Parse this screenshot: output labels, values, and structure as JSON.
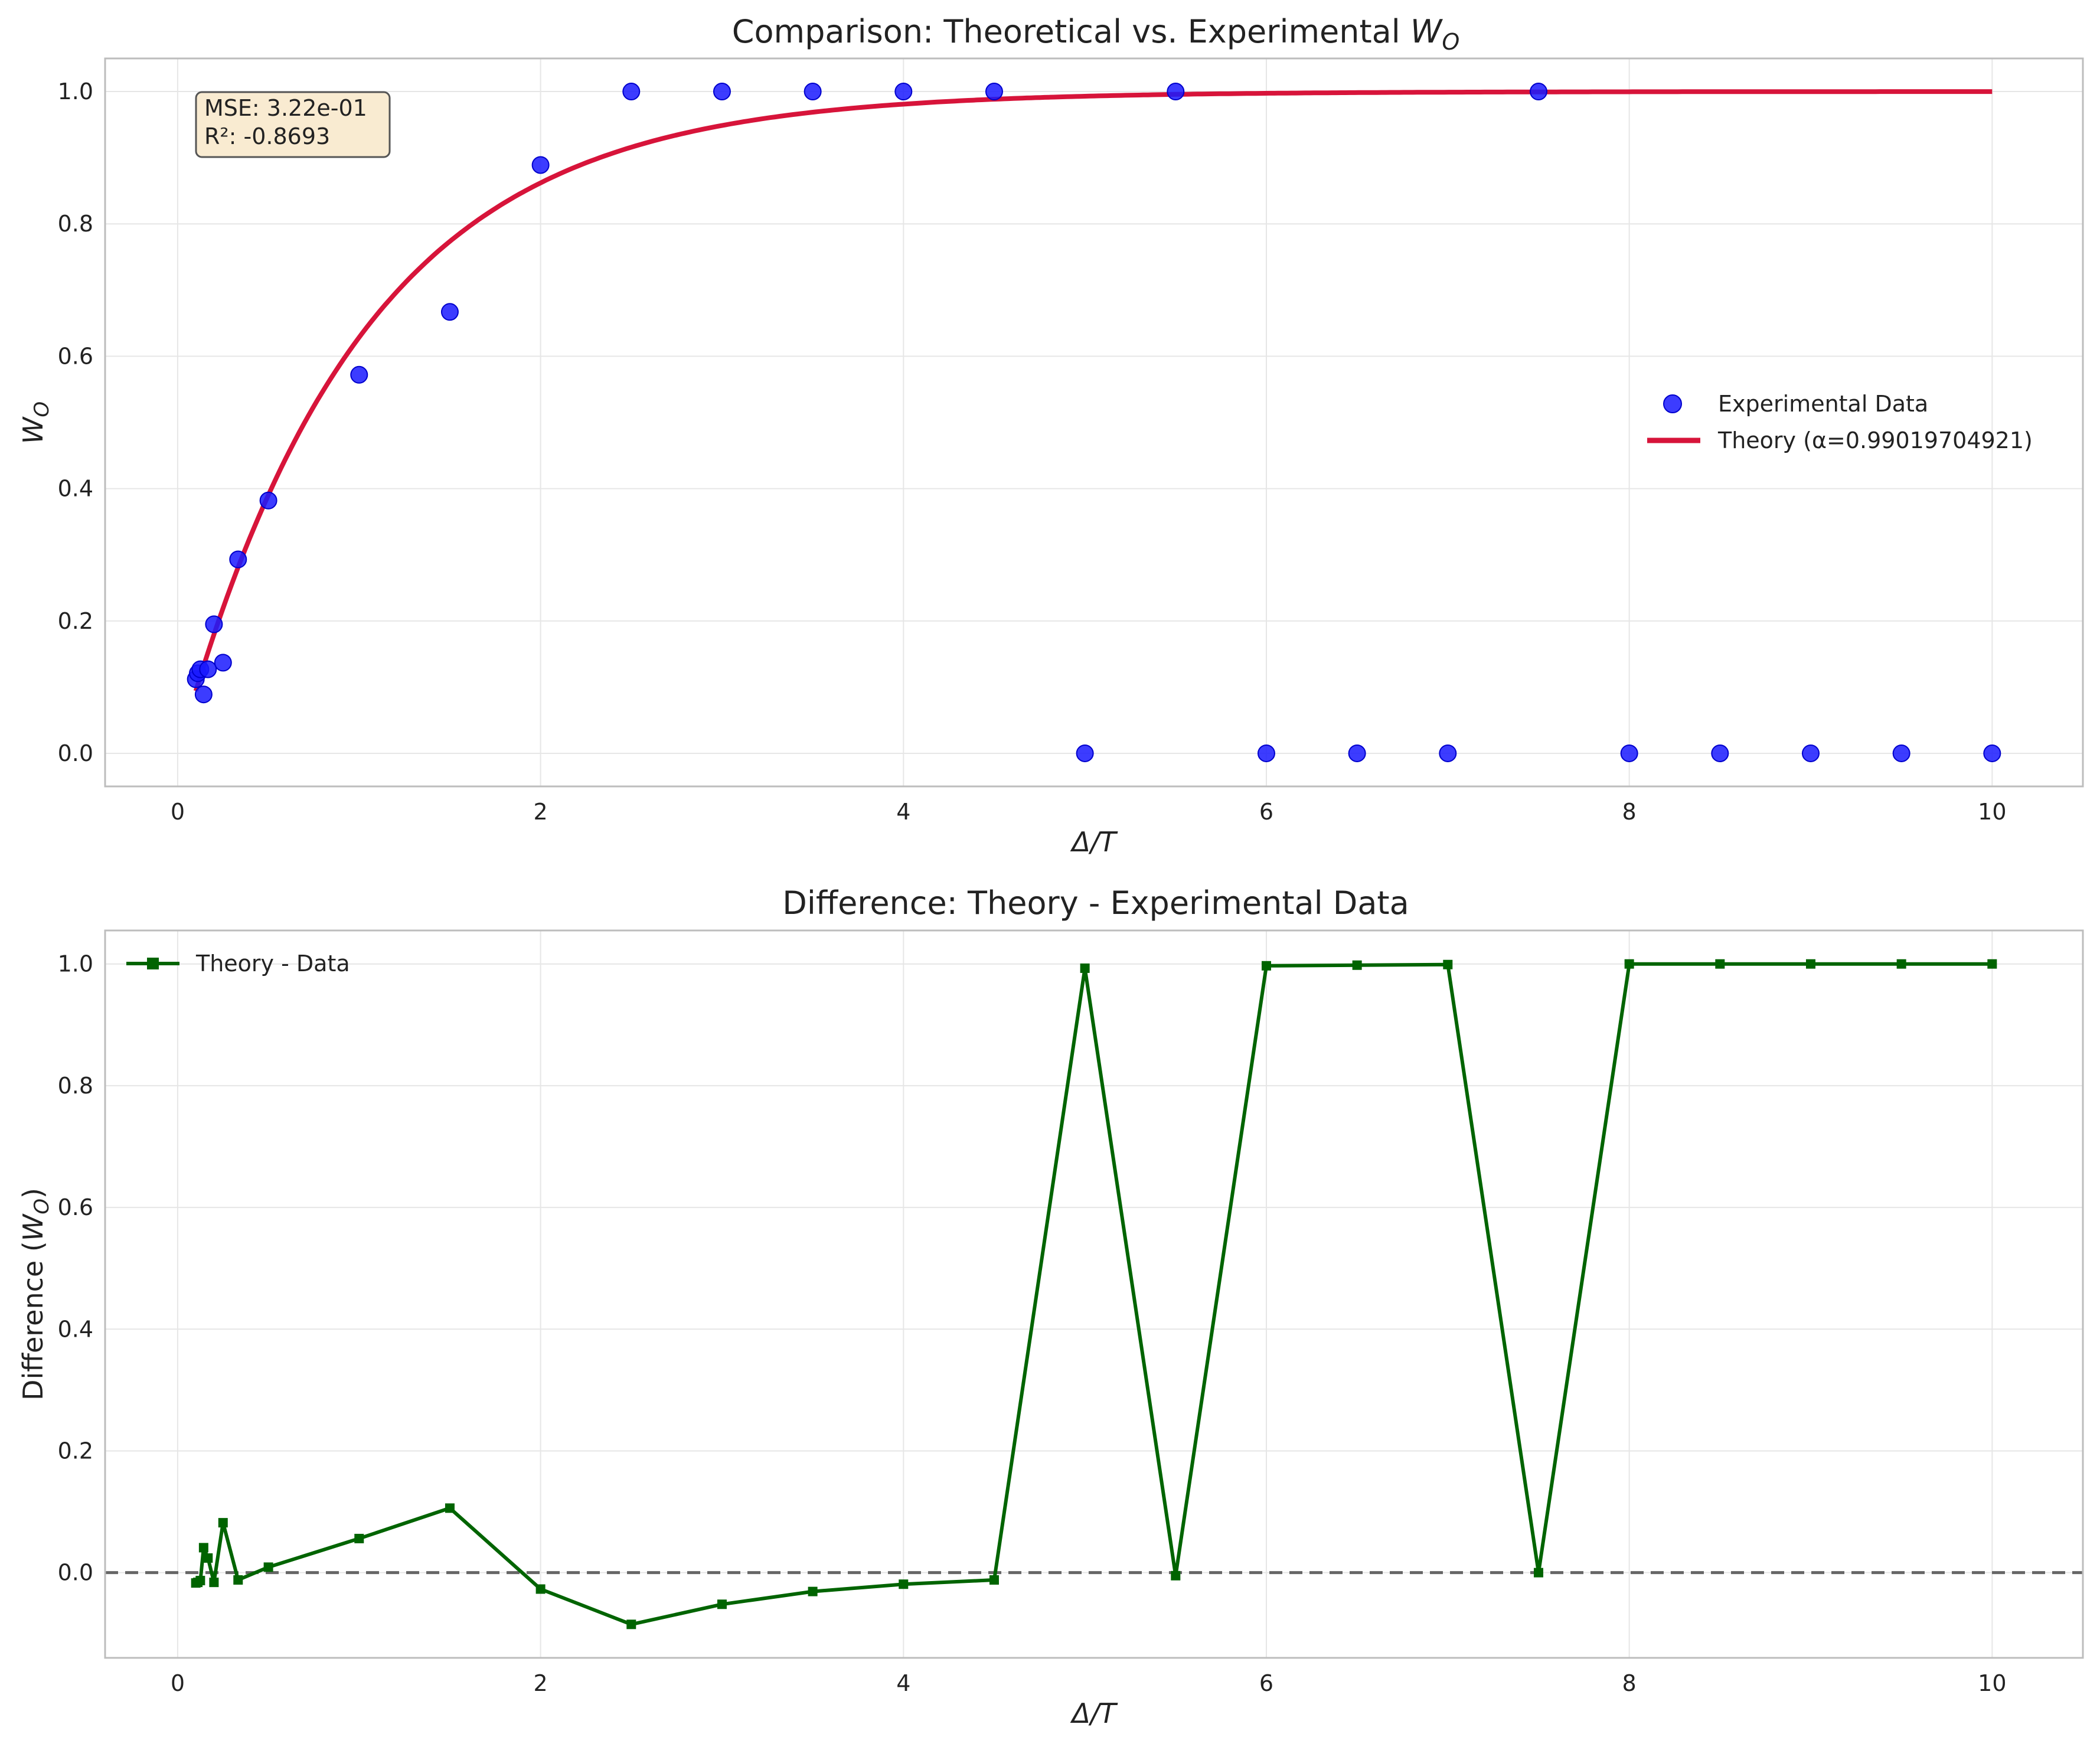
{
  "chart_data": [
    {
      "type": "scatter",
      "title": "Comparison: Theoretical vs. Experimental W_O",
      "title_prefix": "Comparison: Theoretical vs. Experimental ",
      "title_symbol": "W",
      "title_subscript": "O",
      "xlabel": "Δ/T",
      "ylabel_symbol": "W",
      "ylabel_subscript": "O",
      "xlim": [
        -0.4,
        10.5
      ],
      "ylim": [
        -0.05,
        1.05
      ],
      "xticks": [
        0,
        2,
        4,
        6,
        8,
        10
      ],
      "yticks": [
        0.0,
        0.2,
        0.4,
        0.6,
        0.8,
        1.0
      ],
      "grid": true,
      "annotation": [
        "MSE: 3.22e-01",
        "R²: -0.8693"
      ],
      "legend": {
        "position": "center-right",
        "entries": [
          "Experimental Data",
          "Theory (α=0.99019704921)"
        ]
      },
      "series": [
        {
          "name": "Experimental Data",
          "kind": "scatter",
          "color": "#1a1aff",
          "x": [
            0.1,
            0.111,
            0.125,
            0.143,
            0.167,
            0.2,
            0.25,
            0.333,
            0.5,
            1.0,
            1.5,
            2.0,
            2.5,
            3.0,
            3.5,
            4.0,
            4.5,
            5.0,
            5.5,
            6.0,
            6.5,
            7.0,
            7.5,
            8.0,
            8.5,
            9.0,
            9.5,
            10.0
          ],
          "y": [
            0.112,
            0.121,
            0.127,
            0.089,
            0.127,
            0.195,
            0.137,
            0.293,
            0.382,
            0.572,
            0.667,
            0.889,
            1.0,
            1.0,
            1.0,
            1.0,
            1.0,
            0.0,
            1.0,
            0.0,
            0.0,
            0.0,
            1.0,
            0.0,
            0.0,
            0.0,
            0.0,
            0.0
          ]
        },
        {
          "name": "Theory (α=0.99019704921)",
          "kind": "line",
          "color": "#d7143a",
          "alpha": 0.99019704921,
          "x_range": [
            0.1,
            10.0
          ]
        }
      ]
    },
    {
      "type": "line",
      "title": "Difference: Theory - Experimental Data",
      "xlabel": "Δ/T",
      "ylabel_prefix": "Difference (",
      "ylabel_symbol": "W",
      "ylabel_subscript": "O",
      "ylabel_suffix": ")",
      "xlim": [
        -0.4,
        10.5
      ],
      "ylim": [
        -0.14,
        1.055
      ],
      "xticks": [
        0,
        2,
        4,
        6,
        8,
        10
      ],
      "yticks": [
        0.0,
        0.2,
        0.4,
        0.6,
        0.8,
        1.0
      ],
      "grid": true,
      "reference_line": 0.0,
      "legend": {
        "position": "top-left",
        "entries": [
          "Theory - Data"
        ]
      },
      "series": [
        {
          "name": "Theory - Data",
          "color": "#006400",
          "x": [
            0.1,
            0.111,
            0.125,
            0.143,
            0.167,
            0.2,
            0.25,
            0.333,
            0.5,
            1.0,
            1.5,
            2.0,
            2.5,
            3.0,
            3.5,
            4.0,
            4.5,
            5.0,
            5.5,
            6.0,
            6.5,
            7.0,
            7.5,
            8.0,
            8.5,
            9.0,
            9.5,
            10.0
          ],
          "y": [
            -0.017,
            -0.016,
            -0.013,
            0.041,
            0.024,
            -0.016,
            0.082,
            -0.012,
            0.009,
            0.056,
            0.106,
            -0.027,
            -0.085,
            -0.052,
            -0.031,
            -0.019,
            -0.012,
            0.993,
            -0.005,
            0.997,
            0.998,
            0.999,
            0.0,
            1.0,
            1.0,
            1.0,
            1.0,
            1.0
          ]
        }
      ]
    }
  ]
}
